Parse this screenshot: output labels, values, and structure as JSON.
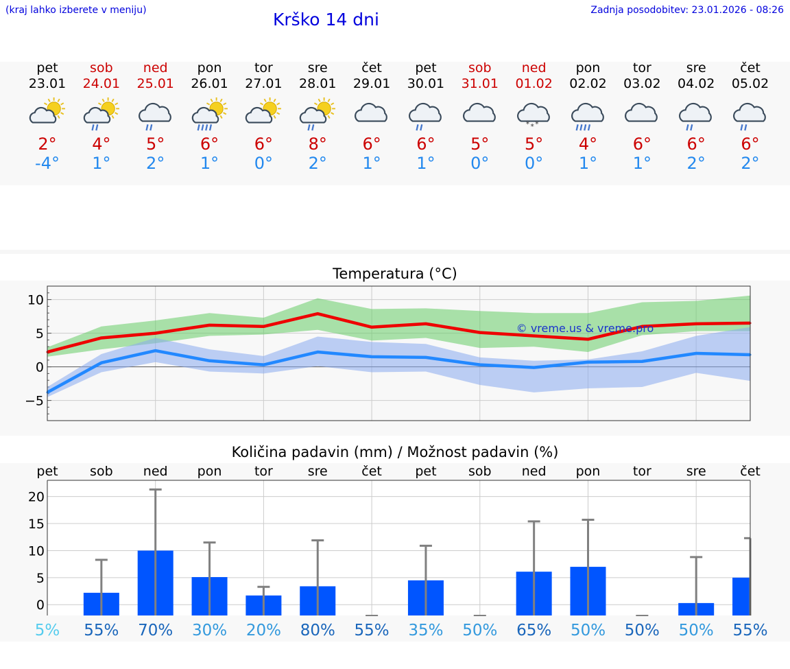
{
  "header": {
    "hint": "(kraj lahko izberete v meniju)",
    "title": "Krško 14 dni",
    "updated": "Zadnja posodobitev: 23.01.2026 - 08:26"
  },
  "colors": {
    "weekday": "#000000",
    "weekend": "#cc0000",
    "max": "#cc0000",
    "min": "#2288ee",
    "link": "#0000dd"
  },
  "days": [
    {
      "name": "pet",
      "date": "23.01",
      "weekend": false,
      "icon": "sun-cloud",
      "max": "2°",
      "min": "-4°"
    },
    {
      "name": "sob",
      "date": "24.01",
      "weekend": true,
      "icon": "sun-cloud-rain",
      "max": "4°",
      "min": "1°"
    },
    {
      "name": "ned",
      "date": "25.01",
      "weekend": true,
      "icon": "cloud-rain",
      "max": "5°",
      "min": "2°"
    },
    {
      "name": "pon",
      "date": "26.01",
      "weekend": false,
      "icon": "sun-cloud-heavy-rain",
      "max": "6°",
      "min": "1°"
    },
    {
      "name": "tor",
      "date": "27.01",
      "weekend": false,
      "icon": "sun-cloud",
      "max": "6°",
      "min": "0°"
    },
    {
      "name": "sre",
      "date": "28.01",
      "weekend": false,
      "icon": "sun-cloud-rain",
      "max": "8°",
      "min": "2°"
    },
    {
      "name": "čet",
      "date": "29.01",
      "weekend": false,
      "icon": "cloud",
      "max": "6°",
      "min": "1°"
    },
    {
      "name": "pet",
      "date": "30.01",
      "weekend": false,
      "icon": "cloud-rain",
      "max": "6°",
      "min": "1°"
    },
    {
      "name": "sob",
      "date": "31.01",
      "weekend": true,
      "icon": "cloud",
      "max": "5°",
      "min": "0°"
    },
    {
      "name": "ned",
      "date": "01.02",
      "weekend": true,
      "icon": "cloud-snow",
      "max": "5°",
      "min": "0°"
    },
    {
      "name": "pon",
      "date": "02.02",
      "weekend": false,
      "icon": "cloud-heavy-rain",
      "max": "4°",
      "min": "1°"
    },
    {
      "name": "tor",
      "date": "03.02",
      "weekend": false,
      "icon": "cloud",
      "max": "6°",
      "min": "1°"
    },
    {
      "name": "sre",
      "date": "04.02",
      "weekend": false,
      "icon": "cloud-rain",
      "max": "6°",
      "min": "2°"
    },
    {
      "name": "čet",
      "date": "05.02",
      "weekend": false,
      "icon": "cloud-rain",
      "max": "6°",
      "min": "2°"
    }
  ],
  "chart_data": [
    {
      "type": "line",
      "title": "Temperatura (°C)",
      "xlabel": "",
      "ylabel": "",
      "ylim": [
        -8,
        12
      ],
      "yticks": [
        -5,
        0,
        5,
        10
      ],
      "ytick_labels": [
        "−5",
        "0",
        "5",
        "10"
      ],
      "grid": true,
      "watermark": "© vreme.us & vreme.pro",
      "x": [
        0,
        1,
        2,
        3,
        4,
        5,
        6,
        7,
        8,
        9,
        10,
        11,
        12,
        13
      ],
      "series": [
        {
          "name": "max",
          "color": "#ee0000",
          "values": [
            2.2,
            4.3,
            5.0,
            6.2,
            6.0,
            7.9,
            5.9,
            6.4,
            5.1,
            4.6,
            4.1,
            6.0,
            6.4,
            6.5
          ]
        },
        {
          "name": "min",
          "color": "#2288ff",
          "values": [
            -3.8,
            0.6,
            2.4,
            0.9,
            0.3,
            2.2,
            1.5,
            1.4,
            0.3,
            -0.1,
            0.7,
            0.8,
            2.0,
            1.8
          ]
        }
      ],
      "bands": [
        {
          "name": "max-range",
          "color": "#66cc66",
          "lower": [
            1.5,
            2.6,
            3.5,
            4.6,
            4.8,
            5.5,
            3.9,
            4.3,
            2.8,
            3.0,
            2.2,
            4.7,
            5.3,
            5.3
          ],
          "upper": [
            2.9,
            6.0,
            6.9,
            8.0,
            7.3,
            10.2,
            8.6,
            8.7,
            8.3,
            8.0,
            8.0,
            9.6,
            9.8,
            10.6
          ]
        },
        {
          "name": "min-range",
          "color": "#88aaee",
          "lower": [
            -4.5,
            -0.8,
            0.7,
            -0.7,
            -1.0,
            0.1,
            -0.8,
            -0.7,
            -2.7,
            -3.8,
            -3.2,
            -3.0,
            -0.9,
            -2.1
          ],
          "upper": [
            -3.0,
            1.9,
            4.3,
            2.6,
            1.6,
            4.5,
            3.7,
            3.4,
            1.4,
            0.9,
            1.1,
            2.3,
            4.6,
            5.9
          ]
        }
      ]
    },
    {
      "type": "bar",
      "title": "Količina padavin (mm) / Možnost padavin (%)",
      "xlabel": "",
      "ylabel": "",
      "ylim": [
        -2,
        23
      ],
      "yticks": [
        0,
        5,
        10,
        15,
        20
      ],
      "grid": true,
      "categories": [
        "pet",
        "sob",
        "ned",
        "pon",
        "tor",
        "sre",
        "čet",
        "pet",
        "sob",
        "ned",
        "pon",
        "tor",
        "sre",
        "čet"
      ],
      "values": [
        0,
        2.2,
        10.0,
        5.1,
        1.7,
        3.4,
        0,
        4.5,
        0,
        6.1,
        7.0,
        0,
        0.3,
        5.0
      ],
      "error_high": [
        0,
        8.3,
        21.3,
        11.5,
        3.3,
        11.9,
        0,
        10.9,
        0,
        15.4,
        15.7,
        0,
        8.8,
        12.3
      ],
      "bar_color": "#0055ff",
      "probabilities": [
        "5%",
        "55%",
        "70%",
        "30%",
        "20%",
        "80%",
        "55%",
        "35%",
        "50%",
        "65%",
        "50%",
        "50%",
        "50%",
        "55%"
      ],
      "probability_colors": [
        "#55ccee",
        "#1a66bb",
        "#1a66bb",
        "#3399dd",
        "#3399dd",
        "#1a66bb",
        "#1a66bb",
        "#3399dd",
        "#3399dd",
        "#1a66bb",
        "#3399dd",
        "#1a66bb",
        "#3399dd",
        "#1a66bb"
      ]
    }
  ]
}
